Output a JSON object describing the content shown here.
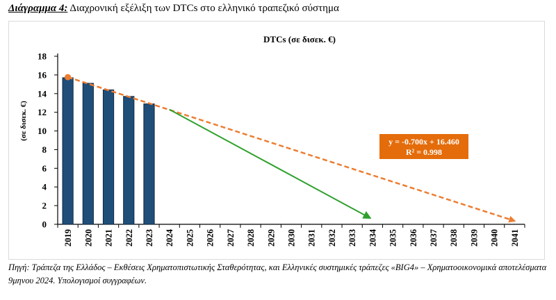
{
  "caption": {
    "label": "Διάγραμμα 4:",
    "text": "Διαχρονική εξέλιξη των DTCs στο ελληνικό τραπεζικό σύστημα"
  },
  "source_note": "Πηγή: Τράπεζα της Ελλάδος – Εκθέσεις Χρηματοπιστωτικής Σταθερότητας, και Ελληνικές συστημικές τράπεζες «BIG4» – Χρηματοοικονομικά αποτελέσματα 9μηνου 2024. Υπολογισμοί συγγραφέων.",
  "chart_data": {
    "type": "bar",
    "title": "DTCs (σε δισεκ. €)",
    "ylabel": "(σε δισεκ. €)",
    "xlabel": "",
    "ylim": [
      0,
      18
    ],
    "yticks": [
      0,
      2,
      4,
      6,
      8,
      10,
      12,
      14,
      16,
      18
    ],
    "categories": [
      "2019",
      "2020",
      "2021",
      "2022",
      "2023",
      "2024",
      "2025",
      "2026",
      "2027",
      "2028",
      "2029",
      "2030",
      "2031",
      "2032",
      "2033",
      "2034",
      "2035",
      "2036",
      "2037",
      "2038",
      "2039",
      "2040",
      "2041"
    ],
    "values": [
      15.7,
      15.1,
      14.4,
      13.7,
      12.9,
      null,
      null,
      null,
      null,
      null,
      null,
      null,
      null,
      null,
      null,
      null,
      null,
      null,
      null,
      null,
      null,
      null,
      null
    ],
    "trendline": {
      "equation": "y = -0.700x + 16.460",
      "r2": "R² = 0.998",
      "start": {
        "x": "2019",
        "y": 15.76
      },
      "end": {
        "x": "2041",
        "y": 0.36
      }
    },
    "arrow": {
      "start": {
        "x": "2024",
        "y": 12.3
      },
      "end": {
        "x": "2034",
        "y": 0.7
      }
    },
    "grid": false,
    "legend": "none",
    "colors": {
      "bar": "#1f4e79",
      "bar_edge": "#0f2a44",
      "trend": "#ed7d31",
      "arrow": "#2ea02c",
      "label_box": "#e46c0a",
      "label_text": "#ffffff"
    }
  }
}
